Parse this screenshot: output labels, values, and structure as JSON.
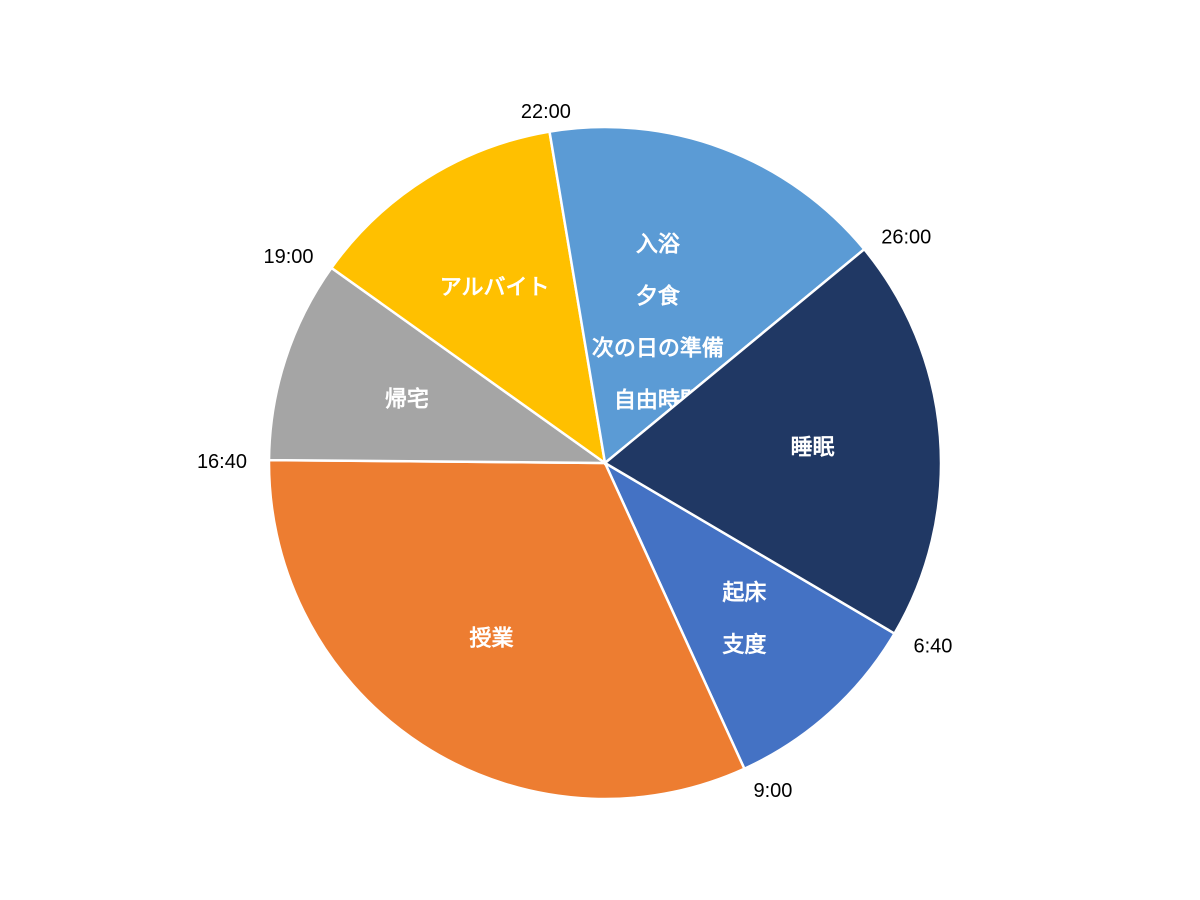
{
  "chart_data": {
    "type": "pie",
    "title": "",
    "unit": "hours",
    "start_time": "6:40",
    "direction": "clockwise",
    "slices": [
      {
        "name": "起床・支度",
        "lines": [
          "起床",
          "支度"
        ],
        "value": 2.333,
        "color": "#4472C4"
      },
      {
        "name": "授業",
        "lines": [
          "授業"
        ],
        "value": 7.667,
        "color": "#ED7D31"
      },
      {
        "name": "帰宅",
        "lines": [
          "帰宅"
        ],
        "value": 2.333,
        "color": "#A5A5A5"
      },
      {
        "name": "アルバイト",
        "lines": [
          "アルバイト"
        ],
        "value": 3.0,
        "color": "#FFC000"
      },
      {
        "name": "入浴・夕食・次の日の準備・自由時間",
        "lines": [
          "入浴",
          "夕食",
          "次の日の準備",
          "自由時間"
        ],
        "value": 4.0,
        "color": "#5B9BD5"
      },
      {
        "name": "睡眠",
        "lines": [
          "睡眠"
        ],
        "value": 4.667,
        "color": "#203864"
      }
    ],
    "boundary_times": [
      "6:40",
      "9:00",
      "16:40",
      "19:00",
      "22:00",
      "26:00"
    ]
  }
}
